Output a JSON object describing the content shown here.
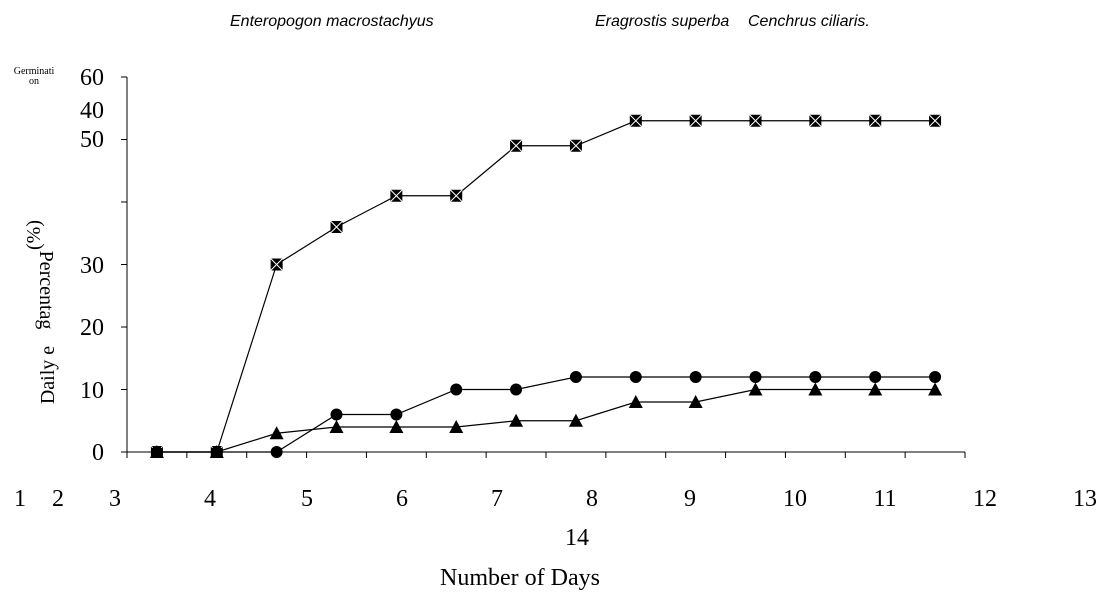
{
  "chart_data": {
    "type": "line",
    "x_label": "Number of Days",
    "y_label": [
      "Germinati",
      "on",
      "Percentag",
      "(%)",
      "Daily e"
    ],
    "categories": [
      "1",
      "2",
      "3",
      "4",
      "5",
      "6",
      "7",
      "8",
      "9",
      "10",
      "11",
      "12",
      "13",
      "14"
    ],
    "series": [
      {
        "name": "Enteropogon macrostachyus",
        "color": "#000000",
        "marker": "square",
        "values": [
          0,
          0,
          30,
          36,
          41,
          41,
          49,
          49,
          53,
          53,
          53,
          53,
          53,
          53
        ]
      },
      {
        "name": "Eragrostis superba",
        "color": "#000000",
        "marker": "circle",
        "values": [
          0,
          0,
          0,
          6,
          6,
          10,
          10,
          12,
          12,
          12,
          12,
          12,
          12,
          12
        ]
      },
      {
        "name": "Cenchrus ciliaris.",
        "color": "#000000",
        "marker": "triangle",
        "values": [
          0,
          0,
          3,
          4,
          4,
          4,
          5,
          5,
          8,
          8,
          10,
          10,
          10,
          10
        ]
      }
    ],
    "ylim": [
      0,
      60
    ],
    "yticks": [
      0,
      10,
      20,
      30,
      40,
      50,
      60
    ],
    "grid": false
  }
}
